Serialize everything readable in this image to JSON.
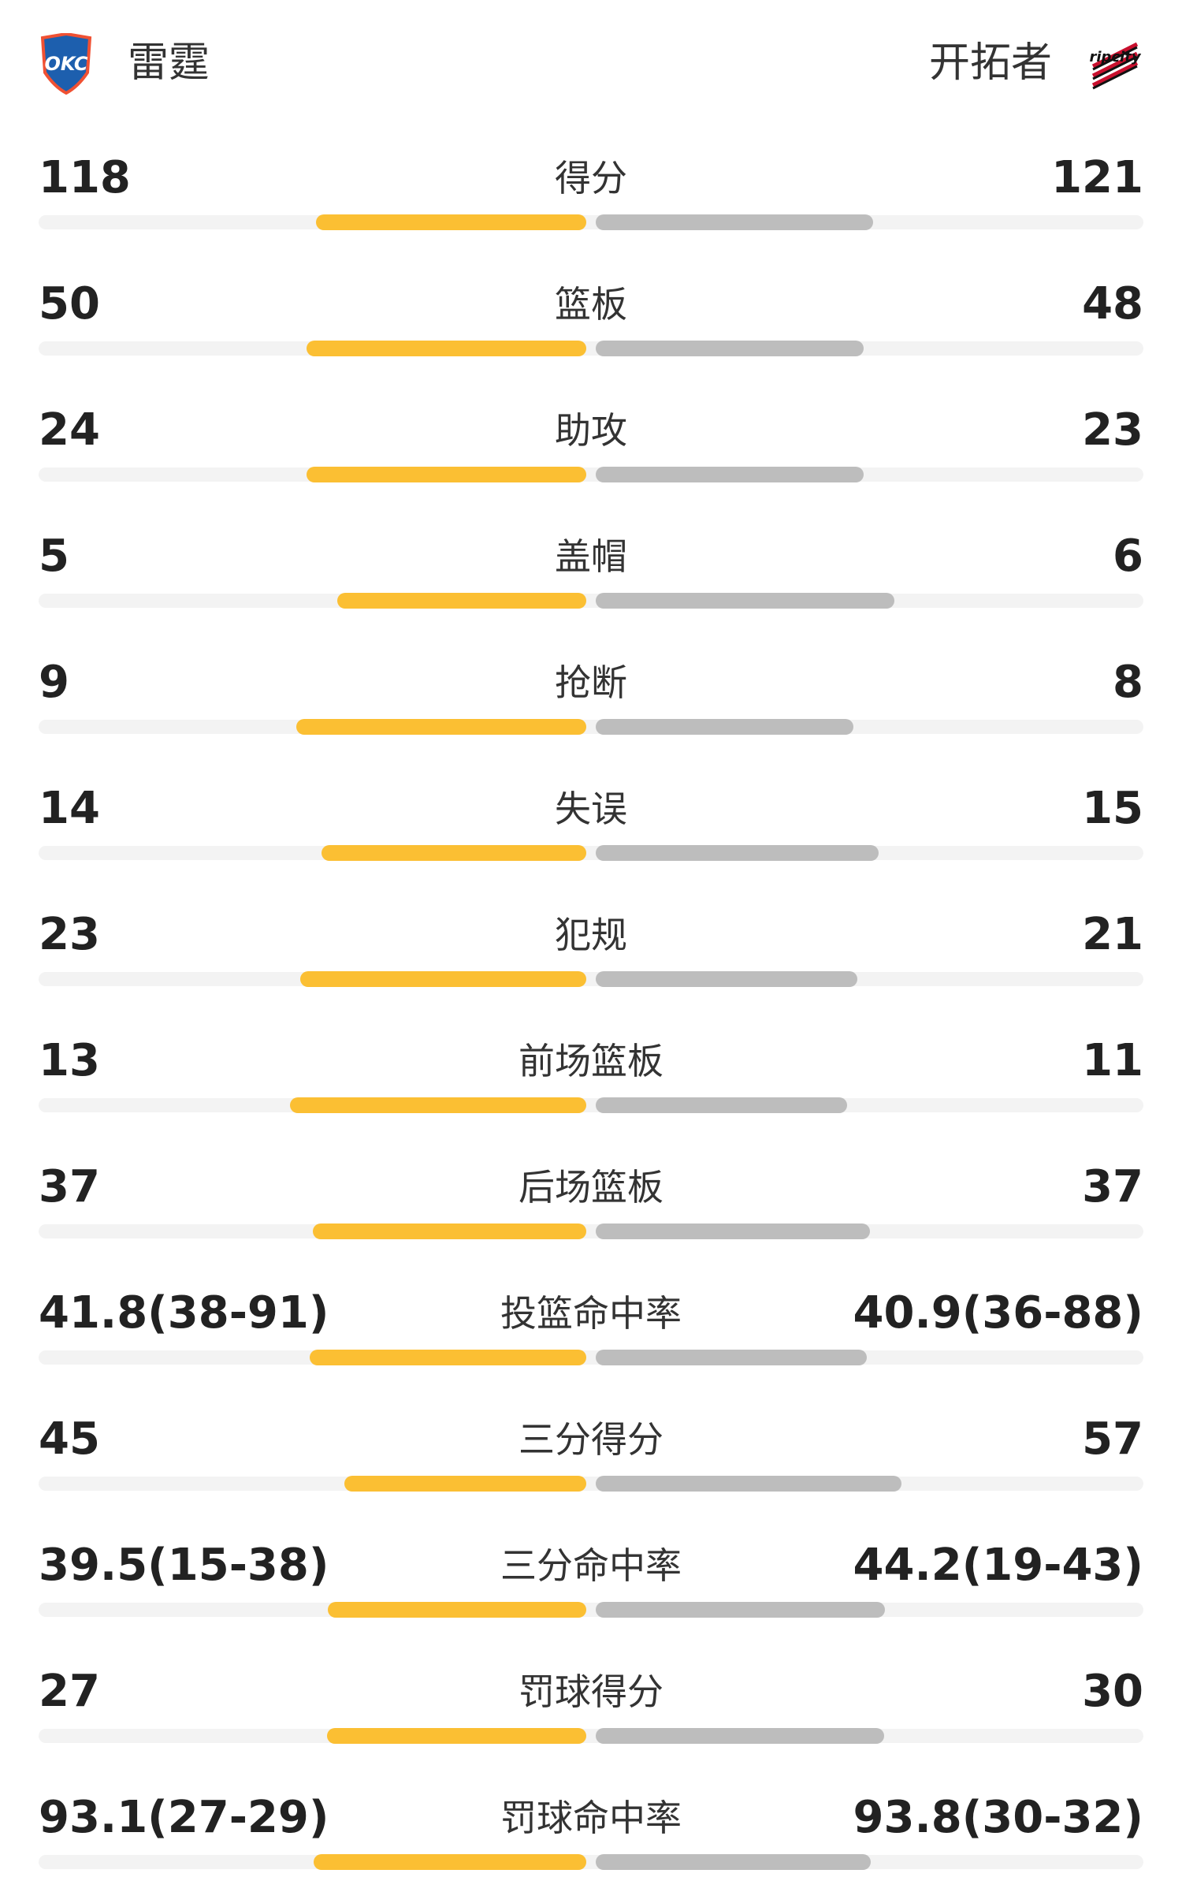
{
  "header": {
    "left_logo_text": "OKC",
    "left_team": "雷霆",
    "right_team": "开拓者",
    "right_logo_text": "ripcity"
  },
  "rows": [
    {
      "label": "得分",
      "left": 118,
      "right": 121
    },
    {
      "label": "篮板",
      "left": 50,
      "right": 48
    },
    {
      "label": "助攻",
      "left": 24,
      "right": 23
    },
    {
      "label": "盖帽",
      "left": 5,
      "right": 6
    },
    {
      "label": "抢断",
      "left": 9,
      "right": 8
    },
    {
      "label": "失误",
      "left": 14,
      "right": 15
    },
    {
      "label": "犯规",
      "left": 23,
      "right": 21
    },
    {
      "label": "前场篮板",
      "left": 13,
      "right": 11
    },
    {
      "label": "后场篮板",
      "left": 37,
      "right": 37
    },
    {
      "label": "投篮命中率",
      "left": 41.8,
      "left_label": "41.8(38-91)",
      "right": 40.9,
      "right_label": "40.9(36-88)"
    },
    {
      "label": "三分得分",
      "left": 45,
      "right": 57
    },
    {
      "label": "三分命中率",
      "left": 39.5,
      "left_label": "39.5(15-38)",
      "right": 44.2,
      "right_label": "44.2(19-43)"
    },
    {
      "label": "罚球得分",
      "left": 27,
      "right": 30
    },
    {
      "label": "罚球命中率",
      "left": 93.1,
      "left_label": "93.1(27-29)",
      "right": 93.8,
      "right_label": "93.8(30-32)"
    }
  ],
  "colors": {
    "left": "#fbbf33",
    "right": "#bdbdbd"
  }
}
